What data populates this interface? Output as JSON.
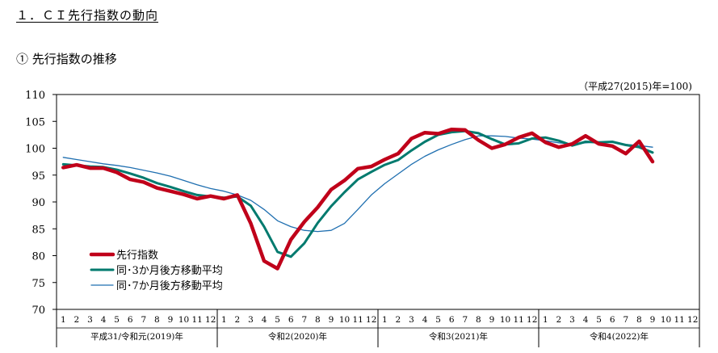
{
  "page": {
    "section_title": "１．ＣＩ先行指数の動向",
    "subsection_title": "① 先行指数の推移",
    "unit_note": "（平成27(2015)年=100)"
  },
  "chart_data": {
    "type": "line",
    "ylim": [
      70,
      110
    ],
    "yticks": [
      70,
      75,
      80,
      85,
      90,
      95,
      100,
      105,
      110
    ],
    "grid": false,
    "legend_position": "bottom-left",
    "month_labels": [
      "1",
      "2",
      "3",
      "4",
      "5",
      "6",
      "7",
      "8",
      "9",
      "10",
      "11",
      "12"
    ],
    "year_groups": [
      "平成31/令和元(2019)年",
      "令和2(2020)年",
      "令和3(2021)年",
      "令和4(2022)年"
    ],
    "series": [
      {
        "name": "先行指数",
        "color": "#c0001a",
        "width": 4.5,
        "values": [
          96.4,
          96.9,
          96.3,
          96.3,
          95.5,
          94.2,
          93.7,
          92.6,
          92.0,
          91.4,
          90.6,
          91.1,
          90.6,
          91.3,
          86.0,
          79.0,
          77.6,
          83.0,
          86.3,
          89.0,
          92.3,
          94.0,
          96.2,
          96.6,
          97.9,
          99.0,
          101.8,
          102.9,
          102.7,
          103.5,
          103.4,
          101.5,
          100.0,
          100.7,
          102.0,
          102.8,
          101.1,
          100.2,
          100.8,
          102.3,
          100.8,
          100.4,
          99.0,
          101.3,
          97.5
        ]
      },
      {
        "name": "同･3か月後方移動平均",
        "color": "#007a6e",
        "width": 3,
        "values": [
          97.0,
          96.8,
          96.6,
          96.5,
          96.0,
          95.3,
          94.5,
          93.5,
          92.8,
          92.0,
          91.3,
          91.0,
          90.8,
          91.0,
          89.3,
          85.4,
          80.7,
          79.8,
          82.3,
          86.1,
          89.2,
          91.8,
          94.2,
          95.6,
          96.9,
          97.8,
          99.6,
          101.2,
          102.5,
          103.0,
          103.2,
          102.8,
          101.7,
          100.7,
          100.9,
          101.8,
          102.0,
          101.4,
          100.5,
          101.2,
          101.1,
          101.2,
          100.6,
          100.2,
          99.2
        ]
      },
      {
        "name": "同･7か月後方移動平均",
        "color": "#1f6fb0",
        "width": 1.3,
        "values": [
          98.3,
          97.9,
          97.5,
          97.1,
          96.8,
          96.4,
          95.9,
          95.4,
          94.8,
          94.0,
          93.2,
          92.5,
          92.0,
          91.3,
          90.3,
          88.6,
          86.5,
          85.4,
          84.7,
          84.5,
          84.7,
          86.0,
          88.6,
          91.3,
          93.4,
          95.2,
          97.0,
          98.5,
          99.7,
          100.7,
          101.6,
          102.3,
          102.3,
          102.2,
          101.9,
          101.7,
          101.4,
          101.0,
          100.8,
          101.0,
          101.2,
          101.1,
          100.7,
          100.5,
          100.2
        ]
      }
    ]
  }
}
